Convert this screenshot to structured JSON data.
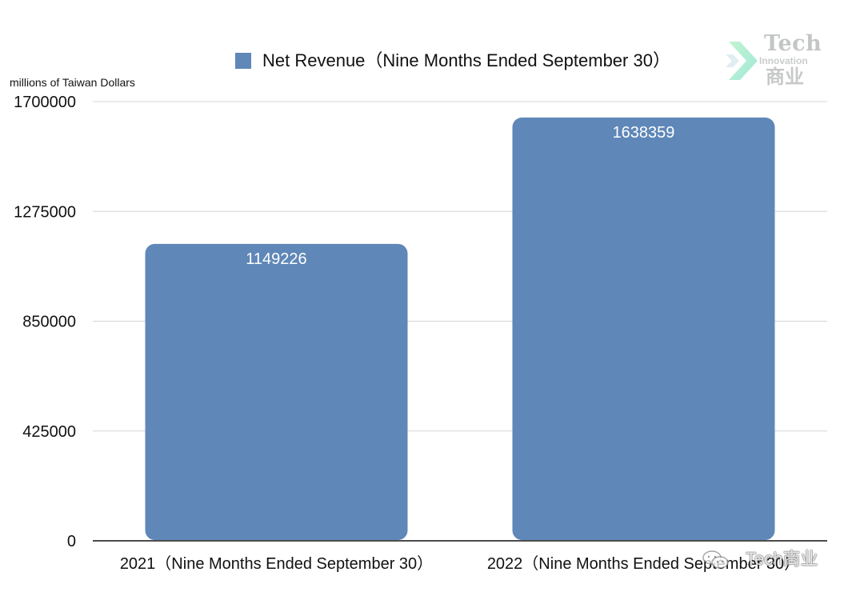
{
  "legend": {
    "label": "Net Revenue（Nine Months Ended September 30）"
  },
  "unit_label": "millions of Taiwan Dollars",
  "logo": {
    "main": "Tech",
    "sub": "Innovation",
    "cn": "商业"
  },
  "watermark": {
    "text": "Tech商业"
  },
  "colors": {
    "bar": "#5f87b8",
    "grid": "#d6d6d6",
    "axis": "#111111",
    "bar_label": "#ffffff"
  },
  "chart_data": {
    "type": "bar",
    "categories": [
      "2021（Nine Months Ended September 30）",
      "2022（Nine Months Ended September 30）"
    ],
    "series": [
      {
        "name": "Net Revenue（Nine Months Ended September 30）",
        "values": [
          1149226,
          1638359
        ]
      }
    ],
    "data_labels": [
      "1149226",
      "1638359"
    ],
    "ylabel": "millions of Taiwan Dollars",
    "ylim": [
      0,
      1700000
    ],
    "yticks": [
      "1700000",
      "1275000",
      "850000",
      "425000",
      "0"
    ],
    "grid": true,
    "legend_position": "top-center"
  }
}
